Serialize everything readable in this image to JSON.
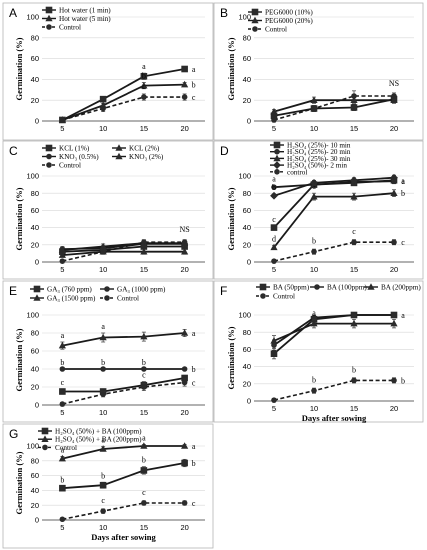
{
  "chart_data": [
    {
      "panel": "A",
      "type": "line",
      "x": [
        5,
        10,
        15,
        20
      ],
      "ylabel": "Germination (%)",
      "xlabel": "",
      "ylim": [
        0,
        100
      ],
      "yticks": [
        0,
        20,
        40,
        60,
        80,
        100
      ],
      "grid": true,
      "legend_position": "top-left",
      "series": [
        {
          "name": "Hot water (1 min)",
          "marker": "square",
          "dashed": false,
          "values": [
            1,
            21,
            43,
            50
          ],
          "errors": [
            0,
            2,
            3,
            2
          ],
          "letters": [
            "",
            "",
            "a",
            "a"
          ]
        },
        {
          "name": "Hot water (5 min)",
          "marker": "triangle",
          "dashed": false,
          "values": [
            1,
            15,
            34,
            35
          ],
          "errors": [
            0,
            2,
            3,
            2
          ],
          "letters": [
            "",
            "",
            "b",
            "b"
          ]
        },
        {
          "name": "Control",
          "marker": "circle",
          "dashed": true,
          "values": [
            1,
            12,
            23,
            23
          ],
          "errors": [
            2,
            3,
            3,
            3
          ],
          "letters": [
            "",
            "",
            "c",
            "c"
          ]
        }
      ],
      "annotations": []
    },
    {
      "panel": "B",
      "type": "line",
      "x": [
        5,
        10,
        15,
        20
      ],
      "ylabel": "Germination (%)",
      "xlabel": "",
      "ylim": [
        0,
        100
      ],
      "yticks": [
        0,
        20,
        40,
        60,
        80,
        100
      ],
      "grid": true,
      "legend_position": "top-left",
      "series": [
        {
          "name": "PEG6000 (10%)",
          "marker": "square",
          "dashed": false,
          "values": [
            5,
            12,
            13,
            21
          ],
          "errors": [
            2,
            2,
            3,
            3
          ],
          "letters": [
            "",
            "",
            "",
            ""
          ]
        },
        {
          "name": "PEG6000 (20%)",
          "marker": "triangle",
          "dashed": false,
          "values": [
            9,
            20,
            20,
            20
          ],
          "errors": [
            2,
            3,
            3,
            3
          ],
          "letters": [
            "",
            "",
            "",
            ""
          ]
        },
        {
          "name": "Control",
          "marker": "circle",
          "dashed": true,
          "values": [
            1,
            12,
            24,
            24
          ],
          "errors": [
            2,
            3,
            5,
            3
          ],
          "letters": [
            "",
            "",
            "",
            ""
          ]
        }
      ],
      "annotations": [
        "NS"
      ]
    },
    {
      "panel": "C",
      "type": "line",
      "x": [
        5,
        10,
        15,
        20
      ],
      "ylabel": "Germination (%)",
      "xlabel": "",
      "ylim": [
        0,
        100
      ],
      "yticks": [
        0,
        20,
        40,
        60,
        80,
        100
      ],
      "grid": true,
      "legend_position": "top-left",
      "series": [
        {
          "name": "KCL (1%)",
          "marker": "square",
          "dashed": false,
          "values": [
            12,
            14,
            18,
            18
          ],
          "errors": [
            3,
            3,
            3,
            3
          ],
          "letters": [
            "",
            "",
            "",
            ""
          ]
        },
        {
          "name": "KCL (2%)",
          "marker": "triangle",
          "dashed": false,
          "values": [
            8,
            12,
            12,
            12
          ],
          "errors": [
            2,
            3,
            3,
            3
          ],
          "letters": [
            "",
            "",
            "",
            ""
          ]
        },
        {
          "name": "KNO₃ (0.5%)",
          "marker": "circle",
          "dashed": false,
          "values": [
            15,
            16,
            21,
            21
          ],
          "errors": [
            3,
            3,
            3,
            3
          ],
          "letters": [
            "",
            "",
            "",
            ""
          ]
        },
        {
          "name": "KNO₃ (2%)",
          "marker": "triangle",
          "dashed": false,
          "values": [
            14,
            18,
            22,
            22
          ],
          "errors": [
            3,
            3,
            3,
            3
          ],
          "letters": [
            "",
            "",
            "",
            ""
          ]
        },
        {
          "name": "Control",
          "marker": "circle",
          "dashed": true,
          "values": [
            1,
            12,
            23,
            23
          ],
          "errors": [
            2,
            3,
            3,
            3
          ],
          "letters": [
            "",
            "",
            "",
            ""
          ]
        }
      ],
      "annotations": [
        "NS"
      ]
    },
    {
      "panel": "D",
      "type": "line",
      "x": [
        5,
        10,
        15,
        20
      ],
      "ylabel": "Germination (%)",
      "xlabel": "",
      "ylim": [
        0,
        100
      ],
      "yticks": [
        0,
        20,
        40,
        60,
        80,
        100
      ],
      "grid": true,
      "legend_position": "top",
      "series": [
        {
          "name": "H₂SO₄ (25%)- 10 min",
          "marker": "square",
          "dashed": false,
          "values": [
            40,
            90,
            92,
            95
          ],
          "errors": [
            2,
            3,
            3,
            3
          ],
          "letters": [
            "c",
            "",
            "",
            "a"
          ]
        },
        {
          "name": "H₂SO₄ (25%)- 20 min",
          "marker": "circle",
          "dashed": false,
          "values": [
            87,
            90,
            93,
            94
          ],
          "errors": [
            2,
            3,
            3,
            3
          ],
          "letters": [
            "a",
            "",
            "",
            "a"
          ]
        },
        {
          "name": "H₂SO₄ (25%)- 30 min",
          "marker": "triangle",
          "dashed": false,
          "values": [
            17,
            76,
            76,
            80
          ],
          "errors": [
            2,
            4,
            4,
            4
          ],
          "letters": [
            "d",
            "a",
            "",
            "b"
          ]
        },
        {
          "name": "H₂SO₄ (50%)- 2 min",
          "marker": "diamond",
          "dashed": false,
          "values": [
            77,
            92,
            95,
            98
          ],
          "errors": [
            2,
            3,
            3,
            3
          ],
          "letters": [
            "b",
            "",
            "",
            ""
          ]
        },
        {
          "name": "control",
          "marker": "circle",
          "dashed": true,
          "values": [
            1,
            12,
            23,
            23
          ],
          "errors": [
            2,
            3,
            3,
            3
          ],
          "letters": [
            "",
            "b",
            "c",
            "c"
          ]
        }
      ],
      "annotations": []
    },
    {
      "panel": "E",
      "type": "line",
      "x": [
        5,
        10,
        15,
        20
      ],
      "ylabel": "Germination (%)",
      "xlabel": "",
      "ylim": [
        0,
        100
      ],
      "yticks": [
        0,
        20,
        40,
        60,
        80,
        100
      ],
      "grid": true,
      "legend_position": "top-left",
      "series": [
        {
          "name": "GA₃ (760 ppm)",
          "marker": "square",
          "dashed": false,
          "values": [
            15,
            15,
            22,
            30
          ],
          "errors": [
            3,
            3,
            4,
            3
          ],
          "letters": [
            "c",
            "",
            "c",
            ""
          ]
        },
        {
          "name": "GA₃ (1000 ppm)",
          "marker": "circle",
          "dashed": false,
          "values": [
            40,
            40,
            40,
            40
          ],
          "errors": [
            0,
            0,
            0,
            0
          ],
          "letters": [
            "b",
            "b",
            "b",
            "b"
          ]
        },
        {
          "name": "GA₃ (1500 ppm)",
          "marker": "triangle",
          "dashed": false,
          "values": [
            66,
            75,
            76,
            80
          ],
          "errors": [
            4,
            5,
            5,
            4
          ],
          "letters": [
            "a",
            "a",
            "",
            "a"
          ]
        },
        {
          "name": "Control",
          "marker": "circle",
          "dashed": true,
          "values": [
            1,
            12,
            20,
            25
          ],
          "errors": [
            2,
            3,
            4,
            4
          ],
          "letters": [
            "",
            "",
            "",
            "c"
          ]
        }
      ],
      "annotations": []
    },
    {
      "panel": "F",
      "type": "line",
      "x": [
        5,
        10,
        15,
        20
      ],
      "ylabel": "Germination (%)",
      "xlabel": "Days after sowing",
      "ylim": [
        0,
        100
      ],
      "yticks": [
        0,
        20,
        40,
        60,
        80,
        100
      ],
      "grid": true,
      "legend_position": "top",
      "series": [
        {
          "name": "BA (50ppm)",
          "marker": "square",
          "dashed": false,
          "values": [
            55,
            95,
            100,
            100
          ],
          "errors": [
            6,
            3,
            0,
            0
          ],
          "letters": [
            "",
            "",
            "",
            "a"
          ]
        },
        {
          "name": "BA (100ppm)",
          "marker": "circle",
          "dashed": false,
          "values": [
            65,
            97,
            100,
            100
          ],
          "errors": [
            6,
            3,
            0,
            0
          ],
          "letters": [
            "",
            "",
            "",
            ""
          ]
        },
        {
          "name": "BA (200ppm)",
          "marker": "triangle",
          "dashed": false,
          "values": [
            70,
            90,
            90,
            90
          ],
          "errors": [
            6,
            5,
            5,
            5
          ],
          "letters": [
            "",
            "a",
            "",
            ""
          ]
        },
        {
          "name": "Control",
          "marker": "circle",
          "dashed": true,
          "values": [
            1,
            12,
            24,
            24
          ],
          "errors": [
            2,
            3,
            3,
            3
          ],
          "letters": [
            "",
            "b",
            "b",
            "b"
          ]
        }
      ],
      "annotations": []
    },
    {
      "panel": "G",
      "type": "line",
      "x": [
        5,
        10,
        15,
        20
      ],
      "ylabel": "Germination (%)",
      "xlabel": "Days after sowing",
      "ylim": [
        0,
        100
      ],
      "yticks": [
        0,
        20,
        40,
        60,
        80,
        100
      ],
      "grid": true,
      "legend_position": "top-left",
      "series": [
        {
          "name": "H₂SO₄ (50%) + BA (100ppm)",
          "marker": "square",
          "dashed": false,
          "values": [
            43,
            47,
            67,
            77
          ],
          "errors": [
            2,
            4,
            5,
            5
          ],
          "letters": [
            "b",
            "b",
            "b",
            "b"
          ]
        },
        {
          "name": "H₂SO₄ (50%) + BA (200ppm)",
          "marker": "triangle",
          "dashed": false,
          "values": [
            83,
            96,
            100,
            100
          ],
          "errors": [
            3,
            3,
            2,
            2
          ],
          "letters": [
            "a",
            "a",
            "a",
            "a"
          ]
        },
        {
          "name": "Control",
          "marker": "circle",
          "dashed": true,
          "values": [
            1,
            12,
            23,
            23
          ],
          "errors": [
            2,
            3,
            3,
            3
          ],
          "letters": [
            "",
            "c",
            "c",
            "c"
          ]
        }
      ],
      "annotations": []
    }
  ]
}
